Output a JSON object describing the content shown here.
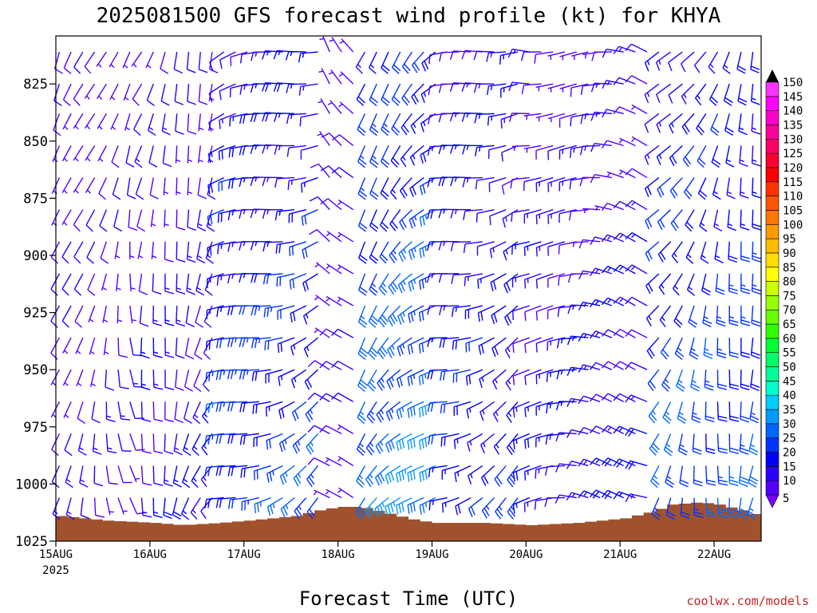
{
  "title": "2025081500 GFS forecast wind profile (kt) for KHYA",
  "xlabel": "Forecast Time (UTC)",
  "credit": "coolwx.com/models",
  "chart_data": {
    "type": "wind-barb profile",
    "title": "2025081500 GFS forecast wind profile (kt) for KHYA",
    "xlabel": "Forecast Time (UTC)",
    "x_ticks": [
      "15AUG",
      "16AUG",
      "17AUG",
      "18AUG",
      "19AUG",
      "20AUG",
      "21AUG",
      "22AUG"
    ],
    "x_year_label": "2025",
    "y_ticks": [
      825,
      850,
      875,
      900,
      925,
      950,
      975,
      1000,
      1025
    ],
    "ylim_hpa": [
      1025,
      804
    ],
    "xlim_days": [
      0,
      7.5
    ],
    "barb_levels_hpa": [
      811,
      825,
      838,
      852,
      866,
      880,
      894,
      908,
      922,
      936,
      950,
      964,
      978,
      992,
      1006,
      1020
    ],
    "time_step_hours": 3,
    "colorbar": {
      "units": "kt",
      "ticks": [
        5,
        10,
        15,
        20,
        25,
        30,
        35,
        40,
        45,
        50,
        55,
        60,
        65,
        70,
        75,
        80,
        85,
        90,
        95,
        100,
        105,
        110,
        115,
        120,
        125,
        130,
        135,
        140,
        145,
        150
      ],
      "colors": [
        "#7a00ff",
        "#5500ff",
        "#2a00ff",
        "#0000ff",
        "#0033ff",
        "#0066ff",
        "#0099ff",
        "#00ccff",
        "#00ffcc",
        "#00ff99",
        "#00ff66",
        "#00ff33",
        "#33ff00",
        "#66ff00",
        "#99ff00",
        "#ccff00",
        "#ffff00",
        "#ffdd00",
        "#ffbb00",
        "#ff9900",
        "#ff7700",
        "#ff5500",
        "#ff3300",
        "#ff0000",
        "#ff0033",
        "#ff0066",
        "#ff0099",
        "#ff00cc",
        "#ff00ff",
        "#ff33ff"
      ]
    },
    "terrain": {
      "color": "#a0522d",
      "surface_pressure_hpa": [
        [
          0.0,
          1014
        ],
        [
          0.5,
          1016
        ],
        [
          1.0,
          1017
        ],
        [
          1.3,
          1018
        ],
        [
          1.7,
          1017
        ],
        [
          2.0,
          1016
        ],
        [
          2.5,
          1014
        ],
        [
          2.8,
          1011
        ],
        [
          3.0,
          1010
        ],
        [
          3.2,
          1010
        ],
        [
          3.5,
          1013
        ],
        [
          3.8,
          1016
        ],
        [
          4.0,
          1017
        ],
        [
          4.5,
          1017
        ],
        [
          5.0,
          1018
        ],
        [
          5.5,
          1017
        ],
        [
          6.0,
          1015
        ],
        [
          6.3,
          1012
        ],
        [
          6.5,
          1009
        ],
        [
          6.8,
          1008
        ],
        [
          7.0,
          1009
        ],
        [
          7.3,
          1012
        ],
        [
          7.5,
          1015
        ]
      ]
    },
    "wind_regimes": [
      {
        "t_from": 0.0,
        "t_to": 0.9,
        "dir_deg": 190,
        "speed_kt": 9
      },
      {
        "t_from": 0.9,
        "t_to": 1.7,
        "dir_deg": 210,
        "speed_kt": 12
      },
      {
        "t_from": 1.7,
        "t_to": 2.9,
        "dir_deg": 250,
        "speed_kt": 20
      },
      {
        "t_from": 2.9,
        "t_to": 3.2,
        "dir_deg": 330,
        "speed_kt": 8
      },
      {
        "t_from": 3.2,
        "t_to": 4.1,
        "dir_deg": 230,
        "speed_kt": 26
      },
      {
        "t_from": 4.1,
        "t_to": 5.0,
        "dir_deg": 250,
        "speed_kt": 17
      },
      {
        "t_from": 5.0,
        "t_to": 6.3,
        "dir_deg": 280,
        "speed_kt": 13
      },
      {
        "t_from": 6.3,
        "t_to": 7.5,
        "dir_deg": 210,
        "speed_kt": 22
      }
    ]
  }
}
